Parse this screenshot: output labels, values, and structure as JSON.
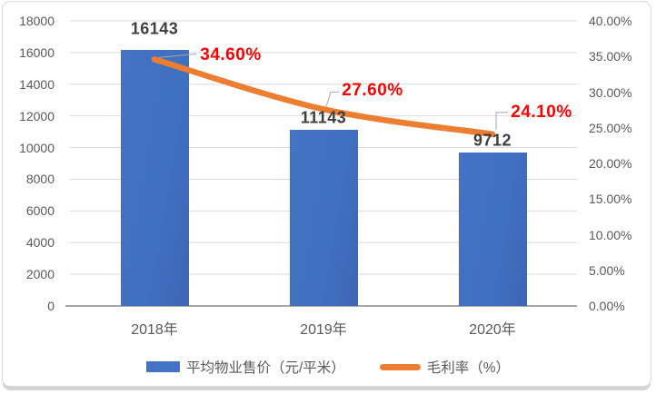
{
  "chart_data": {
    "type": "combo",
    "title": "",
    "categories": [
      "2018年",
      "2019年",
      "2020年"
    ],
    "series": [
      {
        "name": "平均物业售价（元/平米）",
        "type": "bar",
        "axis": "primary",
        "color": "#4472C4",
        "values": [
          16143,
          11143,
          9712
        ],
        "data_labels": [
          "16143",
          "11143",
          "9712"
        ],
        "data_label_color": "#3F3F3F"
      },
      {
        "name": "毛利率（%）",
        "type": "line",
        "axis": "secondary",
        "color": "#ED7D31",
        "smooth": true,
        "values": [
          34.6,
          27.6,
          24.1
        ],
        "data_labels": [
          "34.60%",
          "27.60%",
          "24.10%"
        ],
        "data_label_color": "#FF0000"
      }
    ],
    "primary_axis": {
      "min": 0,
      "max": 18000,
      "step": 2000,
      "tick_labels": [
        "0",
        "2000",
        "4000",
        "6000",
        "8000",
        "10000",
        "12000",
        "14000",
        "16000",
        "18000"
      ]
    },
    "secondary_axis": {
      "min": 0,
      "max": 40,
      "step": 5,
      "tick_labels": [
        "0.00%",
        "5.00%",
        "10.00%",
        "15.00%",
        "20.00%",
        "25.00%",
        "30.00%",
        "35.00%",
        "40.00%"
      ]
    },
    "gridlines": true,
    "legend_position": "bottom",
    "colors": {
      "gridline": "#D9D9D9",
      "axis_line": "#A6A6A6",
      "leader_line": "#A6A6A6",
      "tick_text": "#595959"
    }
  }
}
